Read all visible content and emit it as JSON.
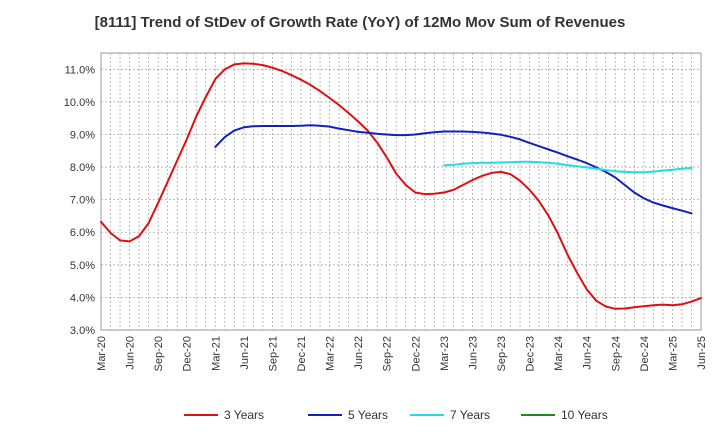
{
  "chart_data": {
    "type": "line",
    "title": "[8111]  Trend of StDev of Growth Rate (YoY) of 12Mo Mov Sum of Revenues",
    "xlabel": "",
    "ylabel": "",
    "ylim": [
      3.0,
      11.5
    ],
    "yticks": [
      {
        "value": 3.0,
        "label": "3.0%"
      },
      {
        "value": 4.0,
        "label": "4.0%"
      },
      {
        "value": 5.0,
        "label": "5.0%"
      },
      {
        "value": 6.0,
        "label": "6.0%"
      },
      {
        "value": 7.0,
        "label": "7.0%"
      },
      {
        "value": 8.0,
        "label": "8.0%"
      },
      {
        "value": 9.0,
        "label": "9.0%"
      },
      {
        "value": 10.0,
        "label": "10.0%"
      },
      {
        "value": 11.0,
        "label": "11.0%"
      }
    ],
    "xticks": [
      "Mar-20",
      "Jun-20",
      "Sep-20",
      "Dec-20",
      "Mar-21",
      "Jun-21",
      "Sep-21",
      "Dec-21",
      "Mar-22",
      "Jun-22",
      "Sep-22",
      "Dec-22",
      "Mar-23",
      "Jun-23",
      "Sep-23",
      "Dec-23",
      "Mar-24",
      "Jun-24",
      "Sep-24",
      "Dec-24",
      "Mar-25",
      "Jun-25"
    ],
    "grid": true,
    "legend_position": "bottom",
    "series": [
      {
        "name": "3 Years",
        "color": "#dd1111",
        "start_month_index": 0,
        "values": [
          6.32,
          5.98,
          5.75,
          5.72,
          5.88,
          6.28,
          6.9,
          7.55,
          8.2,
          8.85,
          9.55,
          10.15,
          10.7,
          11.0,
          11.15,
          11.18,
          11.17,
          11.13,
          11.05,
          10.95,
          10.82,
          10.68,
          10.52,
          10.33,
          10.12,
          9.9,
          9.66,
          9.4,
          9.12,
          8.75,
          8.3,
          7.8,
          7.45,
          7.22,
          7.17,
          7.18,
          7.22,
          7.3,
          7.45,
          7.6,
          7.73,
          7.82,
          7.85,
          7.78,
          7.58,
          7.3,
          6.95,
          6.5,
          5.95,
          5.3,
          4.75,
          4.25,
          3.9,
          3.72,
          3.65,
          3.66,
          3.7,
          3.73,
          3.76,
          3.78,
          3.76,
          3.79,
          3.87,
          3.98
        ]
      },
      {
        "name": "5 Years",
        "color": "#1122bb",
        "start_month_index": 12,
        "values": [
          8.62,
          8.92,
          9.12,
          9.22,
          9.25,
          9.26,
          9.26,
          9.26,
          9.26,
          9.27,
          9.28,
          9.27,
          9.24,
          9.18,
          9.13,
          9.08,
          9.05,
          9.02,
          9.0,
          8.98,
          8.98,
          9.0,
          9.04,
          9.07,
          9.09,
          9.09,
          9.09,
          9.08,
          9.06,
          9.03,
          8.99,
          8.93,
          8.85,
          8.74,
          8.64,
          8.54,
          8.44,
          8.33,
          8.23,
          8.12,
          7.99,
          7.85,
          7.68,
          7.45,
          7.22,
          7.04,
          6.91,
          6.82,
          6.74,
          6.66,
          6.58
        ]
      },
      {
        "name": "7 Years",
        "color": "#22dddd",
        "start_month_index": 36,
        "values": [
          8.05,
          8.07,
          8.1,
          8.12,
          8.13,
          8.13,
          8.14,
          8.15,
          8.16,
          8.16,
          8.15,
          8.13,
          8.1,
          8.06,
          8.02,
          7.99,
          7.95,
          7.91,
          7.87,
          7.85,
          7.84,
          7.84,
          7.86,
          7.89,
          7.92,
          7.95,
          7.97
        ]
      },
      {
        "name": "10 Years",
        "color": "#228822",
        "start_month_index": 0,
        "values": []
      }
    ]
  }
}
